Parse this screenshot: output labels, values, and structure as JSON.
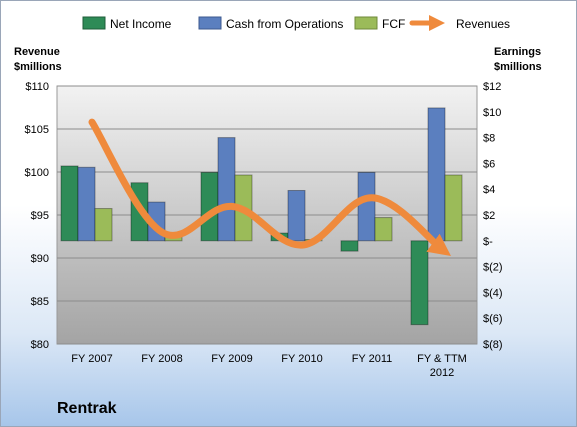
{
  "chart_data": {
    "type": "bar",
    "company": "Rentrak",
    "categories": [
      "FY 2007",
      "FY 2008",
      "FY 2009",
      "FY 2010",
      "FY 2011",
      "FY & TTM 2012"
    ],
    "series": [
      {
        "name": "Net Income",
        "axis": "right",
        "color": "#2e8b57",
        "values": [
          5.8,
          4.5,
          5.3,
          0.6,
          -0.8,
          -6.5
        ]
      },
      {
        "name": "Cash from Operations",
        "axis": "right",
        "color": "#5b7fbf",
        "values": [
          5.7,
          3.0,
          8.0,
          3.9,
          5.3,
          10.3
        ]
      },
      {
        "name": "FCF",
        "axis": "right",
        "color": "#9bbb59",
        "values": [
          2.5,
          0.4,
          5.1,
          0.1,
          1.8,
          5.1
        ]
      }
    ],
    "line": {
      "name": "Revenues",
      "axis": "left",
      "color": "#ef8a3c",
      "values": [
        105.8,
        93.0,
        96.0,
        91.5,
        97.0,
        91.0
      ]
    },
    "left_axis": {
      "title": [
        "Revenue",
        "$millions"
      ],
      "min": 80,
      "max": 110,
      "step": 5,
      "tick_labels": [
        "$80",
        "$85",
        "$90",
        "$95",
        "$100",
        "$105",
        "$110"
      ]
    },
    "right_axis": {
      "title": [
        "Earnings",
        "$millions"
      ],
      "min": -8,
      "max": 12,
      "step": 2,
      "tick_labels": [
        "$(8)",
        "$(6)",
        "$(4)",
        "$(2)",
        "$-",
        "$2",
        "$4",
        "$6",
        "$8",
        "$10",
        "$12"
      ]
    },
    "x_tick_labels": [
      [
        "FY 2007"
      ],
      [
        "FY 2008"
      ],
      [
        "FY 2009"
      ],
      [
        "FY 2010"
      ],
      [
        "FY 2011"
      ],
      [
        "FY & TTM",
        "2012"
      ]
    ],
    "grid": true,
    "legend": {
      "position": "top",
      "entries": [
        "Net Income",
        "Cash from Operations",
        "FCF",
        "Revenues"
      ]
    }
  }
}
